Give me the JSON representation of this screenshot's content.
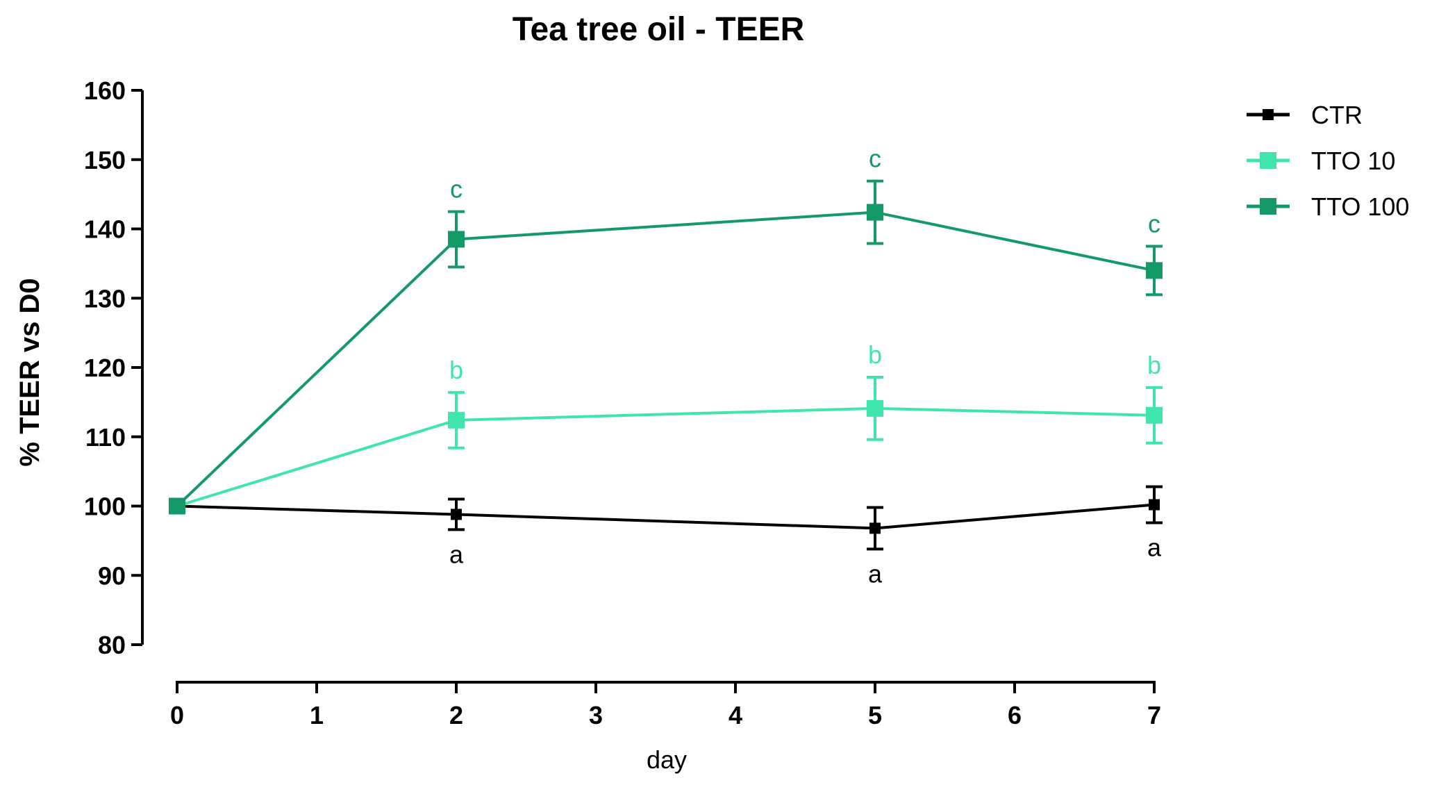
{
  "chart_data": {
    "type": "line",
    "title": "Tea tree oil - TEER",
    "xlabel": "day",
    "ylabel": "% TEER vs D0",
    "xlim": [
      0,
      7
    ],
    "ylim": [
      80,
      160
    ],
    "x_ticks": [
      "0",
      "1",
      "2",
      "3",
      "4",
      "5",
      "6",
      "7"
    ],
    "y_ticks": [
      "80",
      "90",
      "100",
      "110",
      "120",
      "130",
      "140",
      "150",
      "160"
    ],
    "legend": {
      "position": "top-right"
    },
    "series": [
      {
        "name": "CTR",
        "color": "#000000",
        "marker": "small-square",
        "x": [
          0,
          2,
          5,
          7
        ],
        "y": [
          100,
          98.8,
          96.8,
          100.2
        ],
        "error": [
          0,
          2.2,
          3.0,
          2.6
        ],
        "annotations": [
          null,
          "a",
          "a",
          "a"
        ],
        "annotation_side": "below"
      },
      {
        "name": "TTO 10",
        "color": "#40E5AE",
        "marker": "square",
        "x": [
          0,
          2,
          5,
          7
        ],
        "y": [
          100,
          112.4,
          114.1,
          113.1
        ],
        "error": [
          0,
          4.0,
          4.5,
          4.0
        ],
        "annotations": [
          null,
          "b",
          "b",
          "b"
        ],
        "annotation_side": "above"
      },
      {
        "name": "TTO 100",
        "color": "#139A67",
        "marker": "square",
        "x": [
          0,
          2,
          5,
          7
        ],
        "y": [
          100,
          138.5,
          142.4,
          134.0
        ],
        "error": [
          0,
          4.0,
          4.5,
          3.5
        ],
        "annotations": [
          null,
          "c",
          "c",
          "c"
        ],
        "annotation_side": "above"
      }
    ]
  }
}
